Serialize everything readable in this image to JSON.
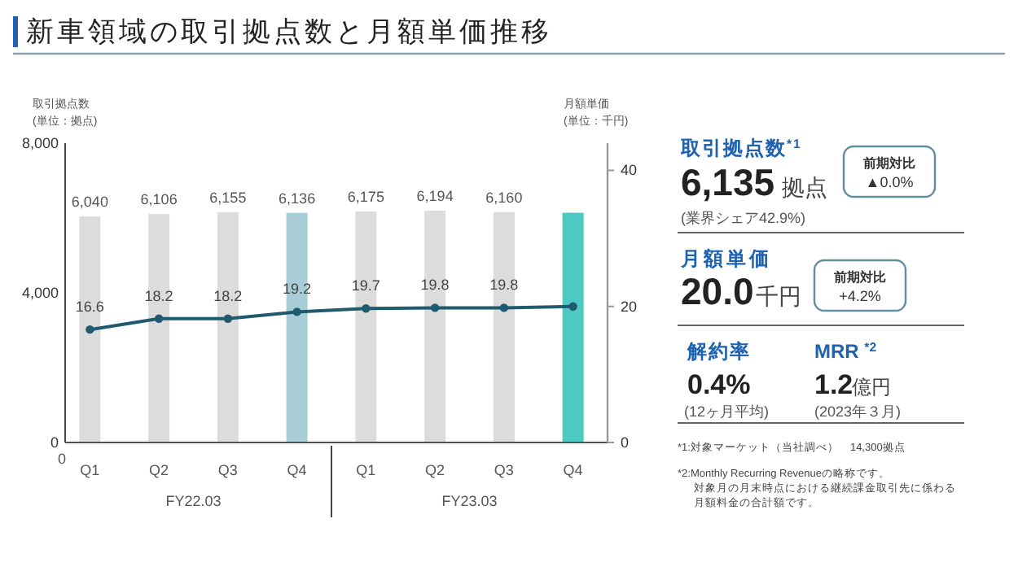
{
  "chart_data": [
    {
      "type": "bar",
      "title": "新車領域の取引拠点数と月額単価推移",
      "ylabel": "取引拠点数\n(単位：拠点)",
      "y2label": "月額単価\n(単位：千円)",
      "categories": [
        "Q1",
        "Q2",
        "Q3",
        "Q4",
        "Q1",
        "Q2",
        "Q3",
        "Q4"
      ],
      "series": [
        {
          "type": "bar",
          "colors": [
            "#dcdcdc",
            "#dcdcdc",
            "#dcdcdc",
            "#a8cdd6",
            "#dcdcdc",
            "#dcdcdc",
            "#dcdcdc",
            "#4cc9c0"
          ],
          "values": [
            6040,
            6106,
            6155,
            6136,
            6175,
            6194,
            6160,
            6140
          ],
          "value_labels": [
            "6,040",
            "6,106",
            "6,155",
            "6,136",
            "6,175",
            "6,194",
            "6,160",
            null
          ]
        },
        {
          "type": "line",
          "axis": "y2",
          "color": "#1f5a6e",
          "marker": "circle",
          "values": [
            16.6,
            18.2,
            18.2,
            19.2,
            19.7,
            19.8,
            19.8,
            20.0
          ],
          "value_labels": [
            "16.6",
            "18.2",
            "18.2",
            "19.2",
            "19.7",
            "19.8",
            "19.8",
            null
          ]
        }
      ],
      "ylim": [
        0,
        8000
      ],
      "yticks": [
        0,
        {
          "value": 4000,
          "label": "4,000"
        },
        {
          "value": 8000,
          "label": "8,000"
        }
      ],
      "y2lim": [
        0,
        44
      ],
      "y2ticks": [
        0,
        20,
        40
      ],
      "annotations": [
        "0",
        "FY22.03",
        "FY23.03"
      ]
    },
    {
      "type": "other",
      "annotations": [
        "取引拠点数$^{*1}$",
        "6,135",
        "拠点",
        "(業界シェア42.9%)",
        "前期対比",
        "▲0.0%",
        "月額単価",
        "20.0",
        "千円",
        "前期対比",
        "+4.2%",
        "解約率",
        "0.4%",
        "(12ヶ月平均)",
        "MRR  $^{*2}$",
        "1.2",
        "億円",
        "(2023年３月)",
        "*1:対象マーケット（当社調べ）　14,300拠点",
        "*2:Monthly Recurring Revenueの略称です。",
        "対象月の月末時点における継続課金取引先に係わる",
        "月額料金の合計額です。"
      ]
    }
  ]
}
